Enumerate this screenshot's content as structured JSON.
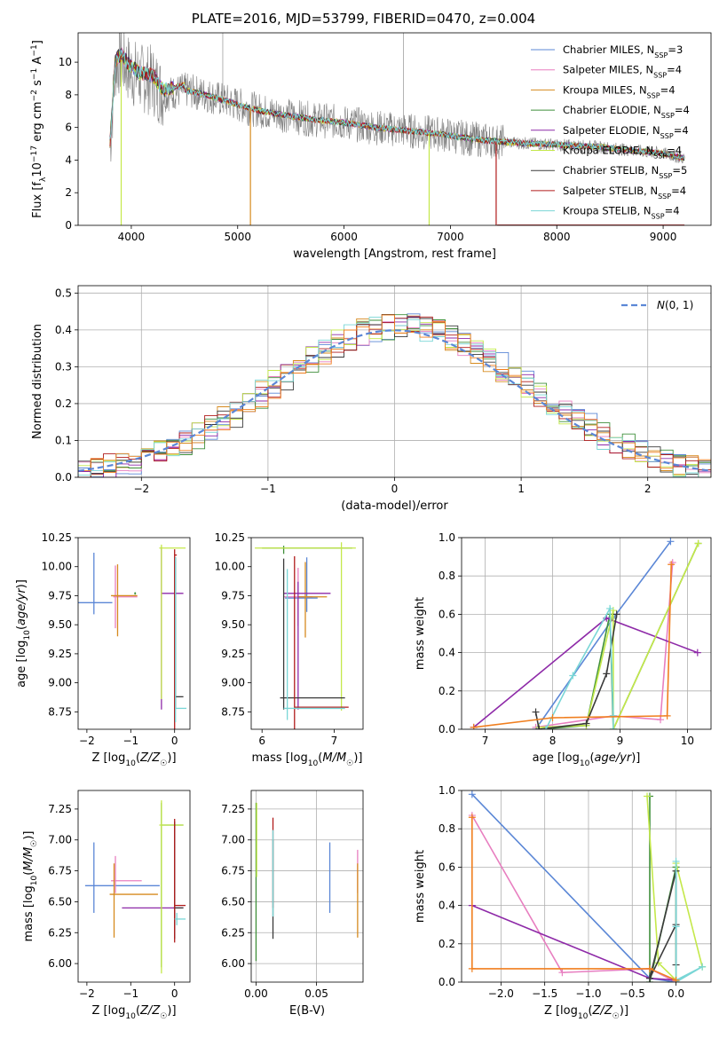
{
  "figure": {
    "title": "PLATE=2016, MJD=53799, FIBERID=0470, z=0.004"
  },
  "colors": {
    "chabrier_miles": "#5b87d6",
    "salpeter_miles": "#e87fc0",
    "kroupa_miles": "#d68a1e",
    "chabrier_elodie": "#3f8f3a",
    "salpeter_elodie": "#8e2aa8",
    "kroupa_elodie": "#c4e84a",
    "chabrier_stelib": "#3a3a3a",
    "salpeter_stelib": "#b01c1c",
    "kroupa_stelib": "#79d6d6",
    "orange": "#f07f1f",
    "data_gray": "#808080",
    "normal_dash": "#5b87d6"
  },
  "chart_data": [
    {
      "id": "spectrum",
      "type": "line",
      "xlabel": "wavelength [Angstrom, rest frame]",
      "ylabel": "Flux [f_λ10^-17 erg cm^-2 s^-1 A^-1]",
      "xlim": [
        3500,
        9450
      ],
      "ylim": [
        0,
        11.8
      ],
      "xticks": [
        4000,
        5000,
        6000,
        7000,
        8000,
        9000
      ],
      "yticks": [
        0,
        2,
        4,
        6,
        8,
        10
      ],
      "grid": false,
      "legend_position": "top-right",
      "legend": [
        {
          "name": "Chabrier MILES, N",
          "sub": "SSP",
          "suffix": "=3",
          "color": "#5b87d6"
        },
        {
          "name": "Salpeter MILES, N",
          "sub": "SSP",
          "suffix": "=4",
          "color": "#e87fc0"
        },
        {
          "name": "Kroupa MILES, N",
          "sub": "SSP",
          "suffix": "=4",
          "color": "#d68a1e"
        },
        {
          "name": "Chabrier ELODIE, N",
          "sub": "SSP",
          "suffix": "=4",
          "color": "#3f8f3a"
        },
        {
          "name": "Salpeter ELODIE, N",
          "sub": "SSP",
          "suffix": "=4",
          "color": "#8e2aa8"
        },
        {
          "name": "Kroupa ELODIE, N",
          "sub": "SSP",
          "suffix": "=4",
          "color": "#c4e84a"
        },
        {
          "name": "Chabrier STELIB, N",
          "sub": "SSP",
          "suffix": "=5",
          "color": "#3a3a3a"
        },
        {
          "name": "Salpeter STELIB, N",
          "sub": "SSP",
          "suffix": "=4",
          "color": "#b01c1c"
        },
        {
          "name": "Kroupa STELIB, N",
          "sub": "SSP",
          "suffix": "=4",
          "color": "#79d6d6"
        }
      ],
      "continuum": {
        "x": [
          3800,
          3850,
          3900,
          4000,
          4100,
          4200,
          4300,
          4500,
          4700,
          4900,
          5100,
          5300,
          5500,
          5700,
          6000,
          6300,
          6600,
          6900,
          7200,
          7500,
          7800,
          8100,
          8400,
          8700,
          9000,
          9200
        ],
        "y": [
          4.8,
          9.8,
          10.2,
          9.4,
          9.0,
          8.9,
          8.0,
          8.3,
          8.0,
          7.6,
          7.2,
          6.9,
          6.7,
          6.5,
          6.3,
          6.0,
          5.8,
          5.6,
          5.3,
          5.1,
          5.0,
          4.9,
          4.8,
          4.6,
          4.4,
          4.1
        ]
      }
    },
    {
      "id": "residuals",
      "type": "histogram",
      "xlabel": "(data-model)/error",
      "ylabel": "Normed distribution",
      "xlim": [
        -2.5,
        2.5
      ],
      "ylim": [
        0,
        0.52
      ],
      "xticks": [
        -2,
        -1,
        0,
        1,
        2
      ],
      "yticks": [
        0.0,
        0.1,
        0.2,
        0.3,
        0.4,
        0.5
      ],
      "grid": true,
      "legend_position": "top-right",
      "legend": [
        {
          "name": "N(0,1)",
          "color": "#5b87d6",
          "style": "dashed"
        }
      ],
      "bin_width": 0.1,
      "reference": "standard normal distribution"
    },
    {
      "id": "age_vs_Z",
      "type": "errorbar",
      "xlabel": "Z [log10(Z/Z☉)]",
      "ylabel": "age  [log10(age/yr)]",
      "xlim": [
        -2.2,
        0.35
      ],
      "ylim": [
        8.6,
        10.25
      ],
      "xticks": [
        -2,
        -1,
        0
      ],
      "yticks": [
        8.75,
        9.0,
        9.25,
        9.5,
        9.75,
        10.0,
        10.25
      ],
      "grid": false,
      "points": [
        {
          "x": -1.84,
          "xerr": [
            0.55,
            0.42
          ],
          "y": 9.69,
          "yerr": [
            0.1,
            0.43
          ],
          "color": "#5b87d6"
        },
        {
          "x": -1.35,
          "xerr": [
            0.05,
            0.5
          ],
          "y": 9.74,
          "yerr": [
            0.27,
            0.27
          ],
          "color": "#e87fc0"
        },
        {
          "x": -1.3,
          "xerr": [
            0.15,
            0.45
          ],
          "y": 9.75,
          "yerr": [
            0.35,
            0.27
          ],
          "color": "#d68a1e"
        },
        {
          "x": -0.9,
          "xerr": [
            0.02,
            0.02
          ],
          "y": 9.77,
          "yerr": [
            0.01,
            0.01
          ],
          "color": "#3f8f3a"
        },
        {
          "x": -0.3,
          "xerr": [
            0.0,
            0.5
          ],
          "y": 9.77,
          "yerr": [
            1.0,
            0.4
          ],
          "color": "#8e2aa8"
        },
        {
          "x": -0.3,
          "xerr": [
            0.05,
            0.55
          ],
          "y": 10.16,
          "yerr": [
            1.3,
            0.03
          ],
          "color": "#c4e84a"
        },
        {
          "x": 0.02,
          "xerr": [
            0.0,
            0.18
          ],
          "y": 8.88,
          "yerr": [
            0.1,
            1.2
          ],
          "color": "#3a3a3a"
        },
        {
          "x": 0.0,
          "xerr": [
            0.0,
            0.05
          ],
          "y": 10.1,
          "yerr": [
            1.5,
            0.05
          ],
          "color": "#b01c1c"
        },
        {
          "x": 0.02,
          "xerr": [
            0.0,
            0.25
          ],
          "y": 8.78,
          "yerr": [
            0.12,
            1.3
          ],
          "color": "#79d6d6"
        }
      ]
    },
    {
      "id": "age_vs_mass",
      "type": "errorbar",
      "xlabel": "mass [log10(M/M☉)]",
      "ylabel": "",
      "xlim": [
        5.85,
        7.4
      ],
      "ylim": [
        8.6,
        10.25
      ],
      "xticks": [
        6,
        7
      ],
      "yticks": [
        8.75,
        9.0,
        9.25,
        9.5,
        9.75,
        10.0,
        10.25
      ],
      "grid": false,
      "points": [
        {
          "x": 6.62,
          "xerr": [
            0.3,
            0.15
          ],
          "y": 9.73,
          "yerr": [
            0.12,
            0.35
          ],
          "color": "#5b87d6"
        },
        {
          "x": 6.5,
          "xerr": [
            0.2,
            0.2
          ],
          "y": 9.74,
          "yerr": [
            0.25,
            0.25
          ],
          "color": "#e87fc0"
        },
        {
          "x": 6.6,
          "xerr": [
            0.1,
            0.3
          ],
          "y": 9.74,
          "yerr": [
            0.35,
            0.3
          ],
          "color": "#d68a1e"
        },
        {
          "x": 6.3,
          "xerr": [
            0.3,
            0.95
          ],
          "y": 10.16,
          "yerr": [
            0.05,
            0.02
          ],
          "color": "#3f8f3a"
        },
        {
          "x": 6.5,
          "xerr": [
            0.2,
            0.45
          ],
          "y": 9.77,
          "yerr": [
            1.0,
            0.1
          ],
          "color": "#8e2aa8"
        },
        {
          "x": 7.1,
          "xerr": [
            1.2,
            0.2
          ],
          "y": 10.16,
          "yerr": [
            1.4,
            0.05
          ],
          "color": "#c4e84a"
        },
        {
          "x": 6.3,
          "xerr": [
            0.05,
            0.85
          ],
          "y": 8.87,
          "yerr": [
            0.1,
            1.2
          ],
          "color": "#3a3a3a"
        },
        {
          "x": 6.45,
          "xerr": [
            0.0,
            0.75
          ],
          "y": 8.79,
          "yerr": [
            0.2,
            1.3
          ],
          "color": "#b01c1c"
        },
        {
          "x": 6.35,
          "xerr": [
            0.05,
            0.8
          ],
          "y": 8.78,
          "yerr": [
            0.1,
            1.2
          ],
          "color": "#79d6d6"
        }
      ]
    },
    {
      "id": "mass_weight_vs_age",
      "type": "line",
      "xlabel": "age  [log10(age/yr)]",
      "ylabel": "mass weight",
      "xlim": [
        6.65,
        10.35
      ],
      "ylim": [
        0,
        1.0
      ],
      "xticks": [
        7,
        8,
        9,
        10
      ],
      "yticks": [
        0.0,
        0.2,
        0.4,
        0.6,
        0.8,
        1.0
      ],
      "grid": true,
      "series": [
        {
          "color": "#5b87d6",
          "x": [
            7.75,
            8.9,
            9.75
          ],
          "y": [
            0.0,
            0.58,
            0.98
          ]
        },
        {
          "color": "#e87fc0",
          "x": [
            7.75,
            8.9,
            9.6,
            9.78
          ],
          "y": [
            0.01,
            0.07,
            0.05,
            0.87
          ]
        },
        {
          "color": "#3f8f3a",
          "x": [
            7.8,
            8.5,
            8.85,
            8.9,
            10.16
          ],
          "y": [
            0.0,
            0.02,
            0.6,
            0.0,
            0.97
          ]
        },
        {
          "color": "#8e2aa8",
          "x": [
            6.83,
            8.8,
            10.15
          ],
          "y": [
            0.01,
            0.58,
            0.4
          ]
        },
        {
          "color": "#c4e84a",
          "x": [
            7.8,
            8.5,
            8.9,
            8.9,
            10.16
          ],
          "y": [
            0.01,
            0.02,
            0.62,
            0.0,
            0.97
          ]
        },
        {
          "color": "#3a3a3a",
          "x": [
            7.75,
            7.8,
            8.5,
            8.8,
            8.95
          ],
          "y": [
            0.09,
            0.0,
            0.03,
            0.29,
            0.6
          ]
        },
        {
          "color": "#79d6d6",
          "x": [
            7.9,
            8.3,
            8.85,
            8.9,
            8.9
          ],
          "y": [
            0.0,
            0.28,
            0.63,
            0.07,
            0.0
          ]
        },
        {
          "color": "#f07f1f",
          "x": [
            6.83,
            8.0,
            9.7,
            9.76
          ],
          "y": [
            0.01,
            0.06,
            0.07,
            0.86
          ]
        }
      ]
    },
    {
      "id": "mass_vs_Z",
      "type": "errorbar",
      "xlabel": "Z [log10(Z/Z☉)]",
      "ylabel": "mass [log10(M/M☉)]",
      "xlim": [
        -2.2,
        0.35
      ],
      "ylim": [
        5.85,
        7.4
      ],
      "xticks": [
        -2,
        -1,
        0
      ],
      "yticks": [
        6.0,
        6.25,
        6.5,
        6.75,
        7.0,
        7.25
      ],
      "grid": false,
      "points": [
        {
          "x": -1.84,
          "xerr": [
            0.2,
            1.5
          ],
          "y": 6.63,
          "yerr": [
            0.22,
            0.35
          ],
          "color": "#5b87d6"
        },
        {
          "x": -1.35,
          "xerr": [
            0.1,
            0.6
          ],
          "y": 6.67,
          "yerr": [
            0.1,
            0.2
          ],
          "color": "#e87fc0"
        },
        {
          "x": -1.38,
          "xerr": [
            0.1,
            1.0
          ],
          "y": 6.56,
          "yerr": [
            0.35,
            0.25
          ],
          "color": "#d68a1e"
        },
        {
          "x": -0.3,
          "xerr": [
            0.0,
            0.5
          ],
          "y": 7.12,
          "yerr": [
            1.15,
            0.18
          ],
          "color": "#3f8f3a"
        },
        {
          "x": -0.95,
          "xerr": [
            0.25,
            1.15
          ],
          "y": 6.45,
          "yerr": [
            0.0,
            0.0
          ],
          "color": "#8e2aa8"
        },
        {
          "x": -0.3,
          "xerr": [
            0.05,
            0.5
          ],
          "y": 7.12,
          "yerr": [
            1.2,
            0.2
          ],
          "color": "#c4e84a"
        },
        {
          "x": 0.0,
          "xerr": [
            0.02,
            0.2
          ],
          "y": 6.45,
          "yerr": [
            0.25,
            0.7
          ],
          "color": "#3a3a3a"
        },
        {
          "x": 0.0,
          "xerr": [
            0.0,
            0.25
          ],
          "y": 6.47,
          "yerr": [
            0.3,
            0.7
          ],
          "color": "#b01c1c"
        },
        {
          "x": 0.05,
          "xerr": [
            0.05,
            0.2
          ],
          "y": 6.36,
          "yerr": [
            0.05,
            0.05
          ],
          "color": "#79d6d6"
        }
      ]
    },
    {
      "id": "mass_vs_ebv",
      "type": "errorbar",
      "xlabel": "E(B-V)",
      "ylabel": "",
      "xlim": [
        -0.004,
        0.0885
      ],
      "ylim": [
        5.85,
        7.4
      ],
      "xticks": [
        0.0,
        0.05
      ],
      "yticks": [
        6.0,
        6.25,
        6.5,
        6.75,
        7.0,
        7.25
      ],
      "grid": true,
      "points": [
        {
          "x": 0.061,
          "xerr": [
            0,
            0
          ],
          "y": 6.63,
          "yerr": [
            0.22,
            0.35
          ],
          "color": "#5b87d6"
        },
        {
          "x": 0.084,
          "xerr": [
            0,
            0
          ],
          "y": 6.67,
          "yerr": [
            0.1,
            0.25
          ],
          "color": "#e87fc0"
        },
        {
          "x": 0.084,
          "xerr": [
            0,
            0
          ],
          "y": 6.56,
          "yerr": [
            0.35,
            0.25
          ],
          "color": "#d68a1e"
        },
        {
          "x": 0.0,
          "xerr": [
            0,
            0
          ],
          "y": 7.12,
          "yerr": [
            1.1,
            0.18
          ],
          "color": "#3f8f3a"
        },
        {
          "x": 0.0005,
          "xerr": [
            0,
            0
          ],
          "y": 7.0,
          "yerr": [
            0.3,
            0.3
          ],
          "color": "#c4e84a"
        },
        {
          "x": 0.014,
          "xerr": [
            0,
            0
          ],
          "y": 6.6,
          "yerr": [
            0.4,
            0.4
          ],
          "color": "#3a3a3a"
        },
        {
          "x": 0.014,
          "xerr": [
            0,
            0
          ],
          "y": 6.75,
          "yerr": [
            0.3,
            0.43
          ],
          "color": "#b01c1c"
        },
        {
          "x": 0.014,
          "xerr": [
            0,
            0
          ],
          "y": 6.68,
          "yerr": [
            0.3,
            0.4
          ],
          "color": "#79d6d6"
        }
      ]
    },
    {
      "id": "mass_weight_vs_Z",
      "type": "line",
      "xlabel": "Z [log10(Z/Z☉)]",
      "ylabel": "mass weight",
      "xlim": [
        -2.45,
        0.4
      ],
      "ylim": [
        0,
        1.0
      ],
      "xticks": [
        -2.0,
        -1.5,
        -1.0,
        -0.5,
        0.0
      ],
      "yticks": [
        0.0,
        0.2,
        0.4,
        0.6,
        0.8,
        1.0
      ],
      "grid": true,
      "series": [
        {
          "color": "#5b87d6",
          "x": [
            -2.33,
            -0.3,
            0.0
          ],
          "y": [
            0.98,
            0.02,
            0.0
          ]
        },
        {
          "color": "#e87fc0",
          "x": [
            -2.33,
            -1.3,
            -0.3,
            0.0
          ],
          "y": [
            0.87,
            0.05,
            0.07,
            0.0
          ]
        },
        {
          "color": "#3f8f3a",
          "x": [
            -0.3,
            -0.3,
            0.0
          ],
          "y": [
            0.97,
            0.0,
            0.6
          ]
        },
        {
          "color": "#8e2aa8",
          "x": [
            -2.33,
            -0.3,
            0.0
          ],
          "y": [
            0.4,
            0.02,
            0.01
          ]
        },
        {
          "color": "#c4e84a",
          "x": [
            -0.33,
            -0.2,
            0.0,
            0.0,
            0.3
          ],
          "y": [
            0.97,
            0.1,
            0.01,
            0.62,
            0.08
          ]
        },
        {
          "color": "#3a3a3a",
          "x": [
            0.0,
            -0.3,
            0.0,
            0.0
          ],
          "y": [
            0.3,
            0.02,
            0.58,
            0.09
          ]
        },
        {
          "color": "#79d6d6",
          "x": [
            0.0,
            0.0,
            0.0,
            0.3,
            0.0
          ],
          "y": [
            0.63,
            0.29,
            0.0,
            0.08,
            0.01
          ]
        },
        {
          "color": "#f07f1f",
          "x": [
            -2.33,
            -2.33,
            -0.3,
            0.0
          ],
          "y": [
            0.86,
            0.07,
            0.07,
            0.01
          ]
        }
      ]
    }
  ]
}
